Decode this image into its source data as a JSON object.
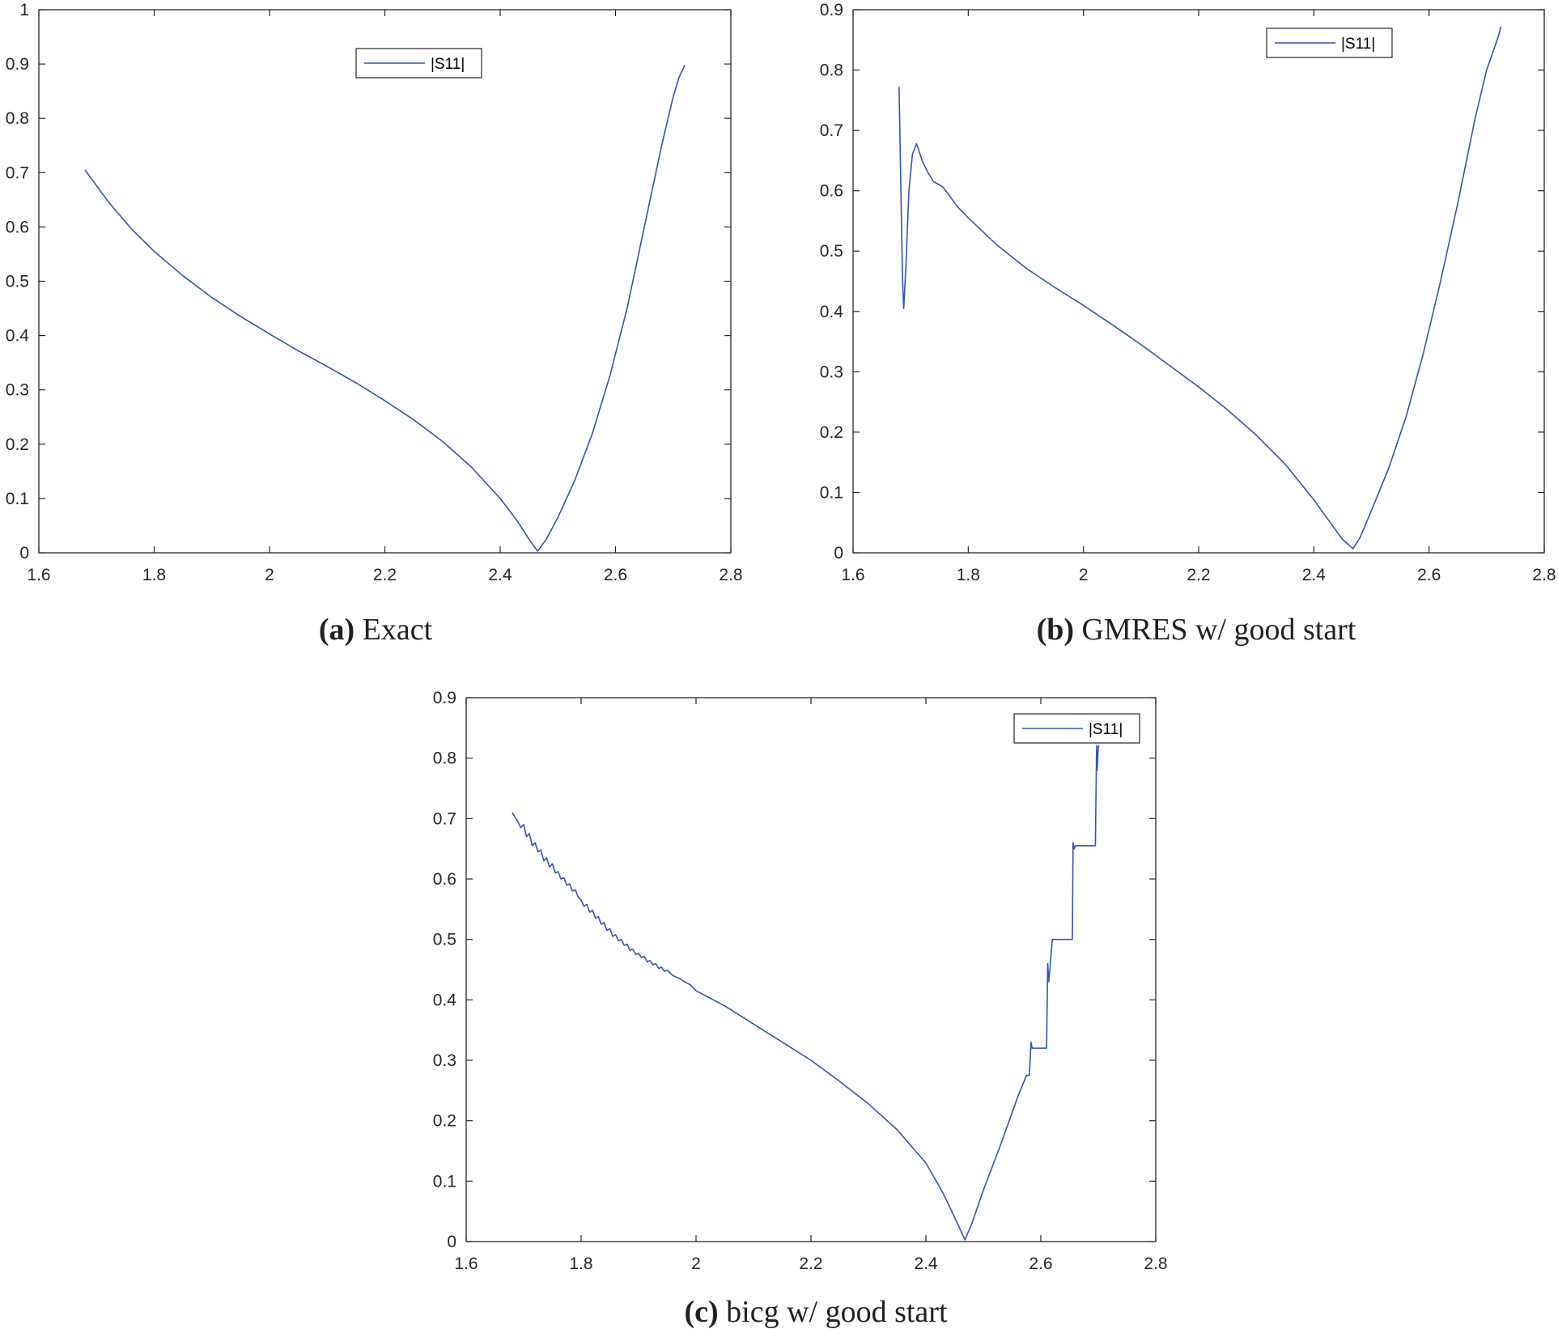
{
  "figure": {
    "captions": [
      {
        "letter": "(a)",
        "text": " Exact"
      },
      {
        "letter": "(b)",
        "text": " GMRES w/ good start"
      },
      {
        "letter": "(c)",
        "text": " bicg w/ good start"
      }
    ]
  },
  "colors": {
    "series": "#3653b0",
    "axis": "#262626",
    "background": "#ffffff"
  },
  "chart_data": [
    {
      "type": "line",
      "title": "(a) Exact",
      "xlabel": "",
      "ylabel": "",
      "xlim": [
        1.6,
        2.8
      ],
      "ylim": [
        0,
        1
      ],
      "xticks": [
        1.6,
        1.8,
        2.0,
        2.2,
        2.4,
        2.6,
        2.8
      ],
      "xtick_labels": [
        "1.6",
        "1.8",
        "2",
        "2.2",
        "2.4",
        "2.6",
        "2.8"
      ],
      "yticks": [
        0,
        0.1,
        0.2,
        0.3,
        0.4,
        0.5,
        0.6,
        0.7,
        0.8,
        0.9,
        1.0
      ],
      "ytick_labels": [
        "0",
        "0.1",
        "0.2",
        "0.3",
        "0.4",
        "0.5",
        "0.6",
        "0.7",
        "0.8",
        "0.9",
        "1"
      ],
      "legend": {
        "entries": [
          "|S11|"
        ],
        "position": "upper-center"
      },
      "series": [
        {
          "name": "|S11|",
          "x": [
            1.68,
            1.72,
            1.76,
            1.8,
            1.85,
            1.9,
            1.95,
            2.0,
            2.05,
            2.1,
            2.15,
            2.2,
            2.25,
            2.3,
            2.35,
            2.4,
            2.43,
            2.45,
            2.465,
            2.48,
            2.5,
            2.53,
            2.56,
            2.59,
            2.62,
            2.65,
            2.68,
            2.7,
            2.71,
            2.72
          ],
          "y": [
            0.705,
            0.647,
            0.597,
            0.555,
            0.51,
            0.47,
            0.435,
            0.403,
            0.372,
            0.343,
            0.313,
            0.28,
            0.245,
            0.205,
            0.158,
            0.1,
            0.058,
            0.025,
            0.003,
            0.025,
            0.065,
            0.135,
            0.22,
            0.325,
            0.45,
            0.6,
            0.75,
            0.84,
            0.875,
            0.898
          ]
        }
      ]
    },
    {
      "type": "line",
      "title": "(b) GMRES w/ good start",
      "xlabel": "",
      "ylabel": "",
      "xlim": [
        1.6,
        2.8
      ],
      "ylim": [
        0,
        0.9
      ],
      "xticks": [
        1.6,
        1.8,
        2.0,
        2.2,
        2.4,
        2.6,
        2.8
      ],
      "xtick_labels": [
        "1.6",
        "1.8",
        "2",
        "2.2",
        "2.4",
        "2.6",
        "2.8"
      ],
      "yticks": [
        0,
        0.1,
        0.2,
        0.3,
        0.4,
        0.5,
        0.6,
        0.7,
        0.8,
        0.9
      ],
      "ytick_labels": [
        "0",
        "0.1",
        "0.2",
        "0.3",
        "0.4",
        "0.5",
        "0.6",
        "0.7",
        "0.8",
        "0.9"
      ],
      "legend": {
        "entries": [
          "|S11|"
        ],
        "position": "top-right"
      },
      "series": [
        {
          "name": "|S11|",
          "x": [
            1.68,
            1.683,
            1.686,
            1.688,
            1.692,
            1.697,
            1.703,
            1.71,
            1.715,
            1.72,
            1.73,
            1.74,
            1.755,
            1.765,
            1.78,
            1.8,
            1.85,
            1.9,
            1.95,
            2.0,
            2.05,
            2.1,
            2.15,
            2.2,
            2.25,
            2.3,
            2.35,
            2.4,
            2.43,
            2.45,
            2.468,
            2.48,
            2.5,
            2.53,
            2.56,
            2.59,
            2.62,
            2.65,
            2.68,
            2.7,
            2.72,
            2.725
          ],
          "y": [
            0.772,
            0.6,
            0.45,
            0.405,
            0.48,
            0.6,
            0.66,
            0.678,
            0.665,
            0.65,
            0.63,
            0.615,
            0.607,
            0.595,
            0.575,
            0.555,
            0.51,
            0.472,
            0.44,
            0.41,
            0.378,
            0.345,
            0.31,
            0.275,
            0.237,
            0.195,
            0.147,
            0.088,
            0.048,
            0.022,
            0.007,
            0.025,
            0.07,
            0.14,
            0.225,
            0.33,
            0.45,
            0.58,
            0.72,
            0.8,
            0.855,
            0.872
          ]
        }
      ]
    },
    {
      "type": "line",
      "title": "(c) bicg w/ good start",
      "xlabel": "",
      "ylabel": "",
      "xlim": [
        1.6,
        2.8
      ],
      "ylim": [
        0,
        0.9
      ],
      "xticks": [
        1.6,
        1.8,
        2.0,
        2.2,
        2.4,
        2.6,
        2.8
      ],
      "xtick_labels": [
        "1.6",
        "1.8",
        "2",
        "2.2",
        "2.4",
        "2.6",
        "2.8"
      ],
      "yticks": [
        0,
        0.1,
        0.2,
        0.3,
        0.4,
        0.5,
        0.6,
        0.7,
        0.8,
        0.9
      ],
      "ytick_labels": [
        "0",
        "0.1",
        "0.2",
        "0.3",
        "0.4",
        "0.5",
        "0.6",
        "0.7",
        "0.8",
        "0.9"
      ],
      "legend": {
        "entries": [
          "|S11|"
        ],
        "position": "top-right"
      },
      "series": [
        {
          "name": "|S11|",
          "x": [
            1.68,
            1.69,
            1.695,
            1.7,
            1.705,
            1.71,
            1.715,
            1.72,
            1.725,
            1.73,
            1.735,
            1.74,
            1.745,
            1.75,
            1.755,
            1.76,
            1.765,
            1.77,
            1.775,
            1.78,
            1.785,
            1.79,
            1.795,
            1.8,
            1.805,
            1.81,
            1.815,
            1.82,
            1.825,
            1.83,
            1.835,
            1.84,
            1.845,
            1.85,
            1.855,
            1.86,
            1.865,
            1.87,
            1.875,
            1.88,
            1.885,
            1.89,
            1.895,
            1.9,
            1.905,
            1.91,
            1.915,
            1.92,
            1.925,
            1.93,
            1.935,
            1.94,
            1.945,
            1.95,
            1.96,
            1.97,
            1.98,
            1.99,
            2.0,
            2.05,
            2.1,
            2.15,
            2.2,
            2.25,
            2.3,
            2.35,
            2.4,
            2.43,
            2.45,
            2.468,
            2.48,
            2.5,
            2.53,
            2.56,
            2.575,
            2.58,
            2.583,
            2.585,
            2.6,
            2.61,
            2.612,
            2.614,
            2.62,
            2.625,
            2.64,
            2.655,
            2.656,
            2.658,
            2.66,
            2.675,
            2.69,
            2.695,
            2.697,
            2.698,
            2.7,
            2.702
          ],
          "y": [
            0.71,
            0.695,
            0.685,
            0.69,
            0.67,
            0.675,
            0.655,
            0.66,
            0.645,
            0.648,
            0.63,
            0.635,
            0.62,
            0.625,
            0.61,
            0.612,
            0.6,
            0.602,
            0.59,
            0.592,
            0.58,
            0.582,
            0.57,
            0.565,
            0.555,
            0.558,
            0.545,
            0.548,
            0.535,
            0.538,
            0.525,
            0.528,
            0.515,
            0.518,
            0.505,
            0.508,
            0.498,
            0.5,
            0.49,
            0.492,
            0.482,
            0.484,
            0.475,
            0.477,
            0.47,
            0.472,
            0.463,
            0.465,
            0.458,
            0.46,
            0.452,
            0.454,
            0.447,
            0.449,
            0.44,
            0.436,
            0.43,
            0.425,
            0.415,
            0.39,
            0.36,
            0.33,
            0.3,
            0.265,
            0.228,
            0.185,
            0.13,
            0.08,
            0.04,
            0.003,
            0.03,
            0.085,
            0.16,
            0.24,
            0.275,
            0.275,
            0.33,
            0.32,
            0.32,
            0.32,
            0.46,
            0.43,
            0.5,
            0.5,
            0.5,
            0.5,
            0.66,
            0.65,
            0.655,
            0.655,
            0.655,
            0.655,
            0.82,
            0.78,
            0.82,
            0.82
          ]
        }
      ]
    }
  ]
}
